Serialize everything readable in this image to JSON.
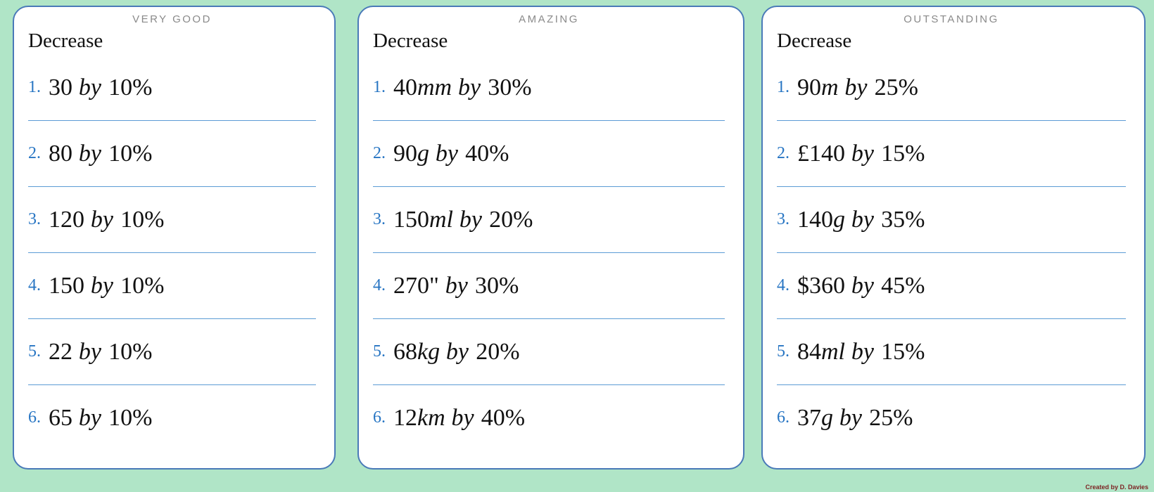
{
  "page": {
    "credit": "Created by D. Davies",
    "background_color": "#b0e5c7",
    "card_border_color": "#4a7ab8",
    "divider_color": "#5b9bd5",
    "number_color": "#2775c3",
    "level_label_color": "#8a8a8a"
  },
  "labels": {
    "by": "by"
  },
  "cards": [
    {
      "level": "VERY GOOD",
      "heading": "Decrease",
      "problems": [
        {
          "num": "1.",
          "currency": "",
          "value": "30",
          "unit": "",
          "percent": "10%"
        },
        {
          "num": "2.",
          "currency": "",
          "value": "80",
          "unit": "",
          "percent": "10%"
        },
        {
          "num": "3.",
          "currency": "",
          "value": "120",
          "unit": "",
          "percent": "10%"
        },
        {
          "num": "4.",
          "currency": "",
          "value": "150",
          "unit": "",
          "percent": "10%"
        },
        {
          "num": "5.",
          "currency": "",
          "value": "22",
          "unit": "",
          "percent": "10%"
        },
        {
          "num": "6.",
          "currency": "",
          "value": "65",
          "unit": "",
          "percent": "10%"
        }
      ]
    },
    {
      "level": "AMAZING",
      "heading": "Decrease",
      "problems": [
        {
          "num": "1.",
          "currency": "",
          "value": "40",
          "unit": "mm",
          "percent": "30%"
        },
        {
          "num": "2.",
          "currency": "",
          "value": "90",
          "unit": "g",
          "percent": "40%"
        },
        {
          "num": "3.",
          "currency": "",
          "value": "150",
          "unit": "ml",
          "percent": "20%"
        },
        {
          "num": "4.",
          "currency": "",
          "value": "270\"",
          "unit": "",
          "percent": "30%"
        },
        {
          "num": "5.",
          "currency": "",
          "value": "68",
          "unit": "kg",
          "percent": "20%"
        },
        {
          "num": "6.",
          "currency": "",
          "value": "12",
          "unit": "km",
          "percent": "40%"
        }
      ]
    },
    {
      "level": "OUTSTANDING",
      "heading": "Decrease",
      "problems": [
        {
          "num": "1.",
          "currency": "",
          "value": "90",
          "unit": "m",
          "percent": "25%"
        },
        {
          "num": "2.",
          "currency": "£",
          "value": "140",
          "unit": "",
          "percent": "15%"
        },
        {
          "num": "3.",
          "currency": "",
          "value": "140",
          "unit": "g",
          "percent": "35%"
        },
        {
          "num": "4.",
          "currency": "$",
          "value": "360",
          "unit": "",
          "percent": "45%"
        },
        {
          "num": "5.",
          "currency": "",
          "value": "84",
          "unit": "ml",
          "percent": "15%"
        },
        {
          "num": "6.",
          "currency": "",
          "value": "37",
          "unit": "g",
          "percent": "25%"
        }
      ]
    }
  ]
}
